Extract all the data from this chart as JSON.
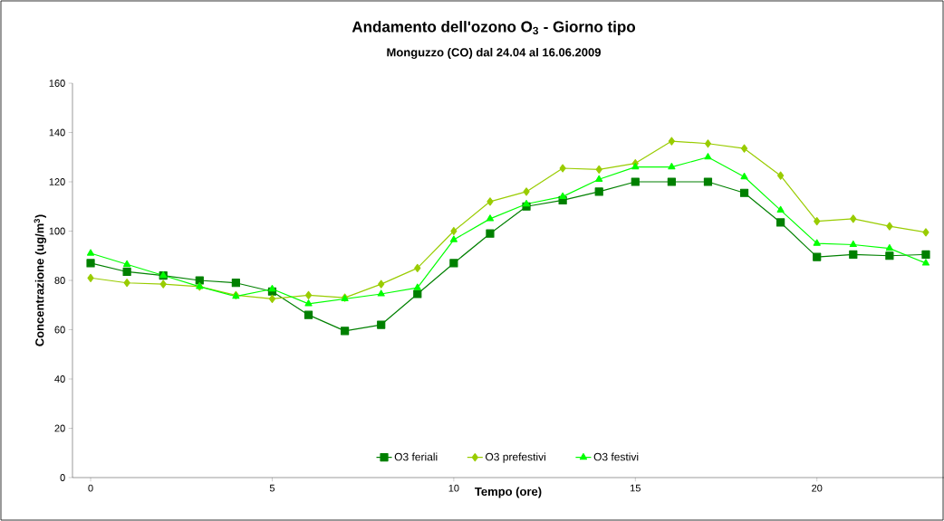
{
  "chart_data": {
    "type": "line",
    "title": "Andamento dell'ozono O$_{3}$ - Giorno tipo",
    "subtitle": "Monguzzo (CO) dal 24.04 al 16.06.2009",
    "xlabel": "Tempo (ore)",
    "ylabel": "Concentrazione (ug/m$^{3}$)",
    "x": [
      0,
      1,
      2,
      3,
      4,
      5,
      6,
      7,
      8,
      9,
      10,
      11,
      12,
      13,
      14,
      15,
      16,
      17,
      18,
      19,
      20,
      21,
      22,
      23
    ],
    "xlim": [
      -0.5,
      23.5
    ],
    "xticks": [
      0,
      5,
      10,
      15,
      20
    ],
    "ylim": [
      0,
      160
    ],
    "yticks": [
      0,
      20,
      40,
      60,
      80,
      100,
      120,
      140,
      160
    ],
    "grid": false,
    "legend": "bottom",
    "series": [
      {
        "name": "O3 feriali",
        "color": "#008000",
        "marker": "square",
        "values": [
          87,
          83.5,
          82,
          80,
          79,
          75.5,
          66,
          59.5,
          62,
          74.5,
          87,
          99,
          110,
          112.5,
          116,
          120,
          120,
          120,
          115.5,
          103.5,
          89.5,
          90.5,
          90,
          90.5
        ]
      },
      {
        "name": "O3 prefestivi",
        "color": "#99cc00",
        "marker": "diamond",
        "values": [
          81,
          79,
          78.5,
          77.5,
          74,
          72.5,
          74,
          73,
          78.5,
          85,
          100,
          112,
          116,
          125.5,
          125,
          127.5,
          136.5,
          135.5,
          133.5,
          122.5,
          104,
          105,
          102,
          99.5
        ]
      },
      {
        "name": "O3 festivi",
        "color": "#00ff00",
        "marker": "triangle",
        "values": [
          91,
          86.5,
          82,
          77.5,
          73.5,
          76.5,
          70.5,
          72.5,
          74.5,
          77,
          96.5,
          105,
          111,
          114,
          121,
          126,
          126,
          130,
          122,
          108.5,
          95,
          94.5,
          93,
          87
        ]
      }
    ]
  }
}
